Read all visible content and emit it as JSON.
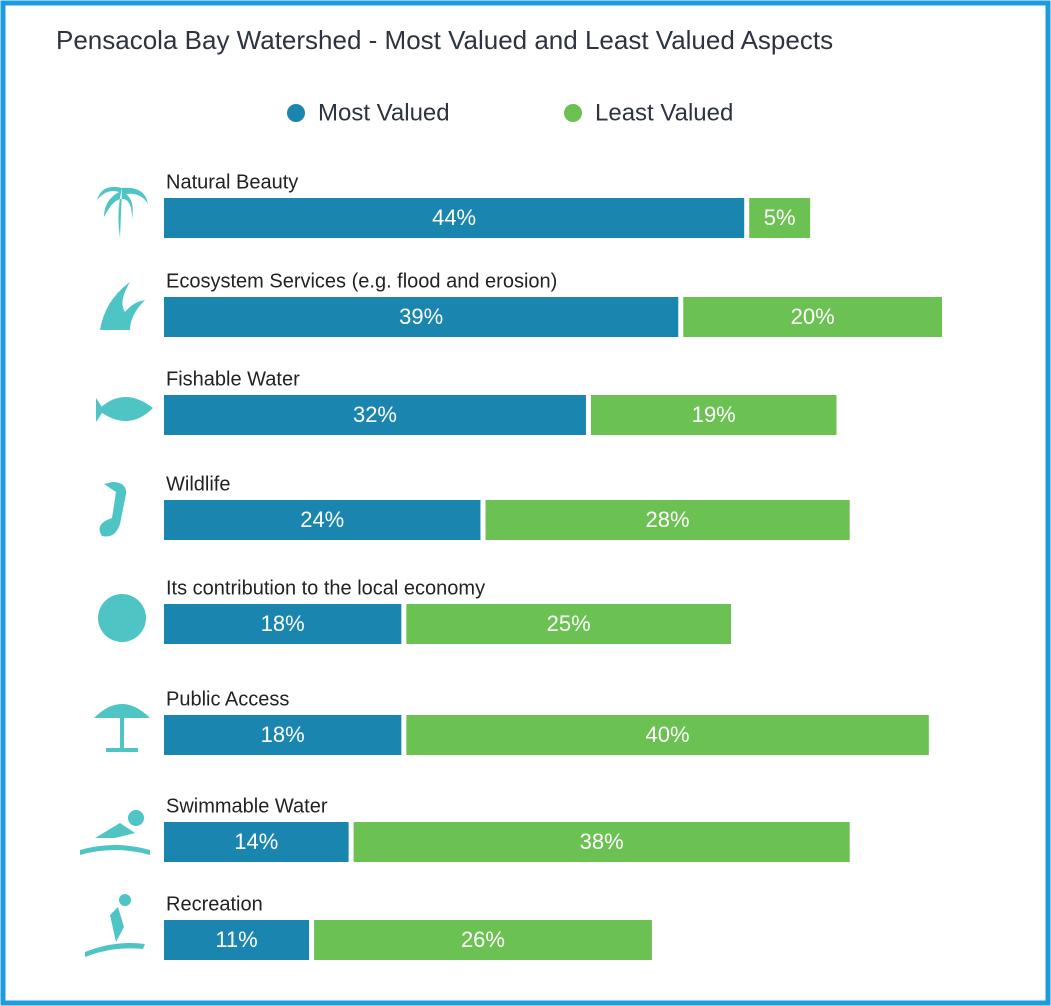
{
  "chart_data": {
    "type": "stacked-bar-horizontal",
    "title": "Pensacola Bay Watershed - Most Valued and Least Valued Aspects",
    "categories": [
      "Natural Beauty",
      "Ecosystem Services (e.g. flood and erosion)",
      "Fishable Water",
      "Wildlife",
      "Its contribution to the local economy",
      "Public Access",
      "Swimmable Water",
      "Recreation"
    ],
    "series": [
      {
        "name": "Most Valued",
        "color": "#1a86b0",
        "values": [
          44,
          39,
          32,
          24,
          18,
          18,
          14,
          11
        ],
        "value_labels": [
          "44%",
          "39%",
          "32%",
          "24%",
          "18%",
          "18%",
          "14%",
          "11%"
        ]
      },
      {
        "name": "Least Valued",
        "color": "#6cc153",
        "values": [
          5,
          20,
          19,
          28,
          25,
          40,
          38,
          26
        ],
        "value_labels": [
          "5%",
          "20%",
          "19%",
          "28%",
          "25%",
          "40%",
          "38%",
          "26%"
        ]
      }
    ]
  }
}
